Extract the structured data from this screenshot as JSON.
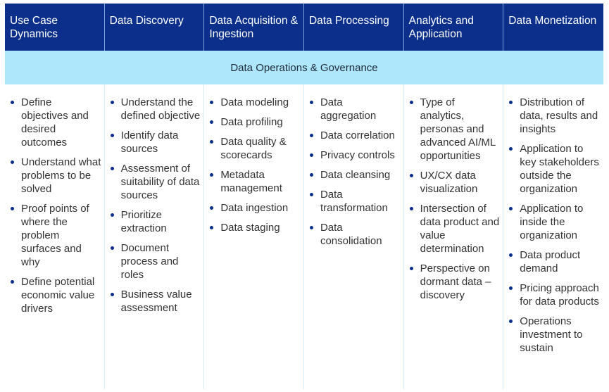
{
  "colors": {
    "header_bg": "#0b2f8a",
    "band_bg": "#aee6fb",
    "bullet": "#0b2f8a",
    "text": "#333333"
  },
  "band_label": "Data Operations & Governance",
  "columns": [
    {
      "title": "Use Case Dynamics",
      "items": [
        "Define objectives and desired outcomes",
        "Understand what problems to be solved",
        "Proof points of where the problem surfaces and why",
        "Define potential economic value drivers"
      ]
    },
    {
      "title": "Data Discovery",
      "items": [
        "Understand the defined objective",
        "Identify data sources",
        "Assessment of suitability of data sources",
        "Prioritize extraction",
        "Document process and roles",
        "Business value assessment"
      ]
    },
    {
      "title": "Data Acquisition & Ingestion",
      "items": [
        "Data modeling",
        "Data profiling",
        "Data quality & scorecards",
        "Metadata management",
        "Data ingestion",
        "Data staging"
      ]
    },
    {
      "title": "Data Processing",
      "items": [
        "Data aggregation",
        "Data correlation",
        "Privacy controls",
        "Data cleansing",
        "Data transformation",
        "Data consolidation"
      ]
    },
    {
      "title": "Analytics and Application",
      "items": [
        "Type of analytics, personas and advanced AI/ML opportunities",
        "UX/CX data visualization",
        "Intersection of data product and value determination",
        "Perspective on dormant data – discovery"
      ]
    },
    {
      "title": "Data Monetization",
      "items": [
        "Distribution of data, results and insights",
        "Application to key stakeholders outside the organization",
        "Application to inside the organization",
        "Data product demand",
        "Pricing approach for data products",
        "Operations investment to sustain"
      ]
    }
  ]
}
